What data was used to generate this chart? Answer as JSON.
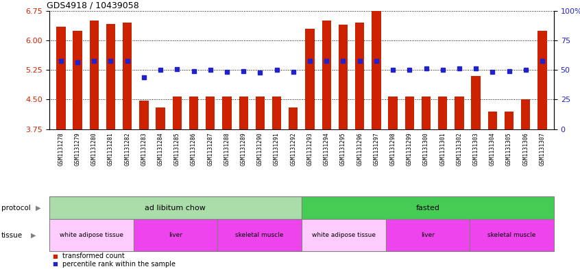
{
  "title": "GDS4918 / 10439058",
  "samples": [
    "GSM1131278",
    "GSM1131279",
    "GSM1131280",
    "GSM1131281",
    "GSM1131282",
    "GSM1131283",
    "GSM1131284",
    "GSM1131285",
    "GSM1131286",
    "GSM1131287",
    "GSM1131288",
    "GSM1131289",
    "GSM1131290",
    "GSM1131291",
    "GSM1131292",
    "GSM1131293",
    "GSM1131294",
    "GSM1131295",
    "GSM1131296",
    "GSM1131297",
    "GSM1131298",
    "GSM1131299",
    "GSM1131300",
    "GSM1131301",
    "GSM1131302",
    "GSM1131303",
    "GSM1131304",
    "GSM1131305",
    "GSM1131306",
    "GSM1131307"
  ],
  "bar_values": [
    6.35,
    6.25,
    6.5,
    6.42,
    6.45,
    4.47,
    4.3,
    4.57,
    4.57,
    4.57,
    4.57,
    4.57,
    4.57,
    4.57,
    4.3,
    6.3,
    6.5,
    6.4,
    6.45,
    6.75,
    4.57,
    4.57,
    4.57,
    4.57,
    4.57,
    5.1,
    4.2,
    4.2,
    4.5,
    6.25
  ],
  "percentile_values": [
    5.47,
    5.44,
    5.47,
    5.47,
    5.47,
    5.07,
    5.25,
    5.27,
    5.22,
    5.25,
    5.2,
    5.22,
    5.18,
    5.25,
    5.2,
    5.47,
    5.47,
    5.47,
    5.47,
    5.47,
    5.25,
    5.25,
    5.28,
    5.25,
    5.28,
    5.28,
    5.2,
    5.22,
    5.25,
    5.47
  ],
  "ylim_left": [
    3.75,
    6.75
  ],
  "ylim_right": [
    0,
    100
  ],
  "yticks_left": [
    3.75,
    4.5,
    5.25,
    6.0,
    6.75
  ],
  "yticks_right": [
    0,
    25,
    50,
    75,
    100
  ],
  "bar_color": "#CC2200",
  "dot_color": "#2222CC",
  "protocol_groups": [
    {
      "label": "ad libitum chow",
      "start": 0,
      "end": 14,
      "color": "#AADDAA"
    },
    {
      "label": "fasted",
      "start": 15,
      "end": 29,
      "color": "#44CC55"
    }
  ],
  "tissue_groups": [
    {
      "label": "white adipose tissue",
      "start": 0,
      "end": 4,
      "color": "#FFCCFF"
    },
    {
      "label": "liver",
      "start": 5,
      "end": 9,
      "color": "#EE66EE"
    },
    {
      "label": "skeletal muscle",
      "start": 10,
      "end": 14,
      "color": "#EE66EE"
    },
    {
      "label": "white adipose tissue",
      "start": 15,
      "end": 19,
      "color": "#FFCCFF"
    },
    {
      "label": "liver",
      "start": 20,
      "end": 24,
      "color": "#EE66EE"
    },
    {
      "label": "skeletal muscle",
      "start": 25,
      "end": 29,
      "color": "#EE66EE"
    }
  ],
  "legend_items": [
    {
      "label": "transformed count",
      "color": "#CC2200"
    },
    {
      "label": "percentile rank within the sample",
      "color": "#2222CC"
    }
  ],
  "xtick_bg": "#D4D4D4",
  "grid_color": "black",
  "grid_linestyle": "dotted",
  "grid_linewidth": 0.7
}
